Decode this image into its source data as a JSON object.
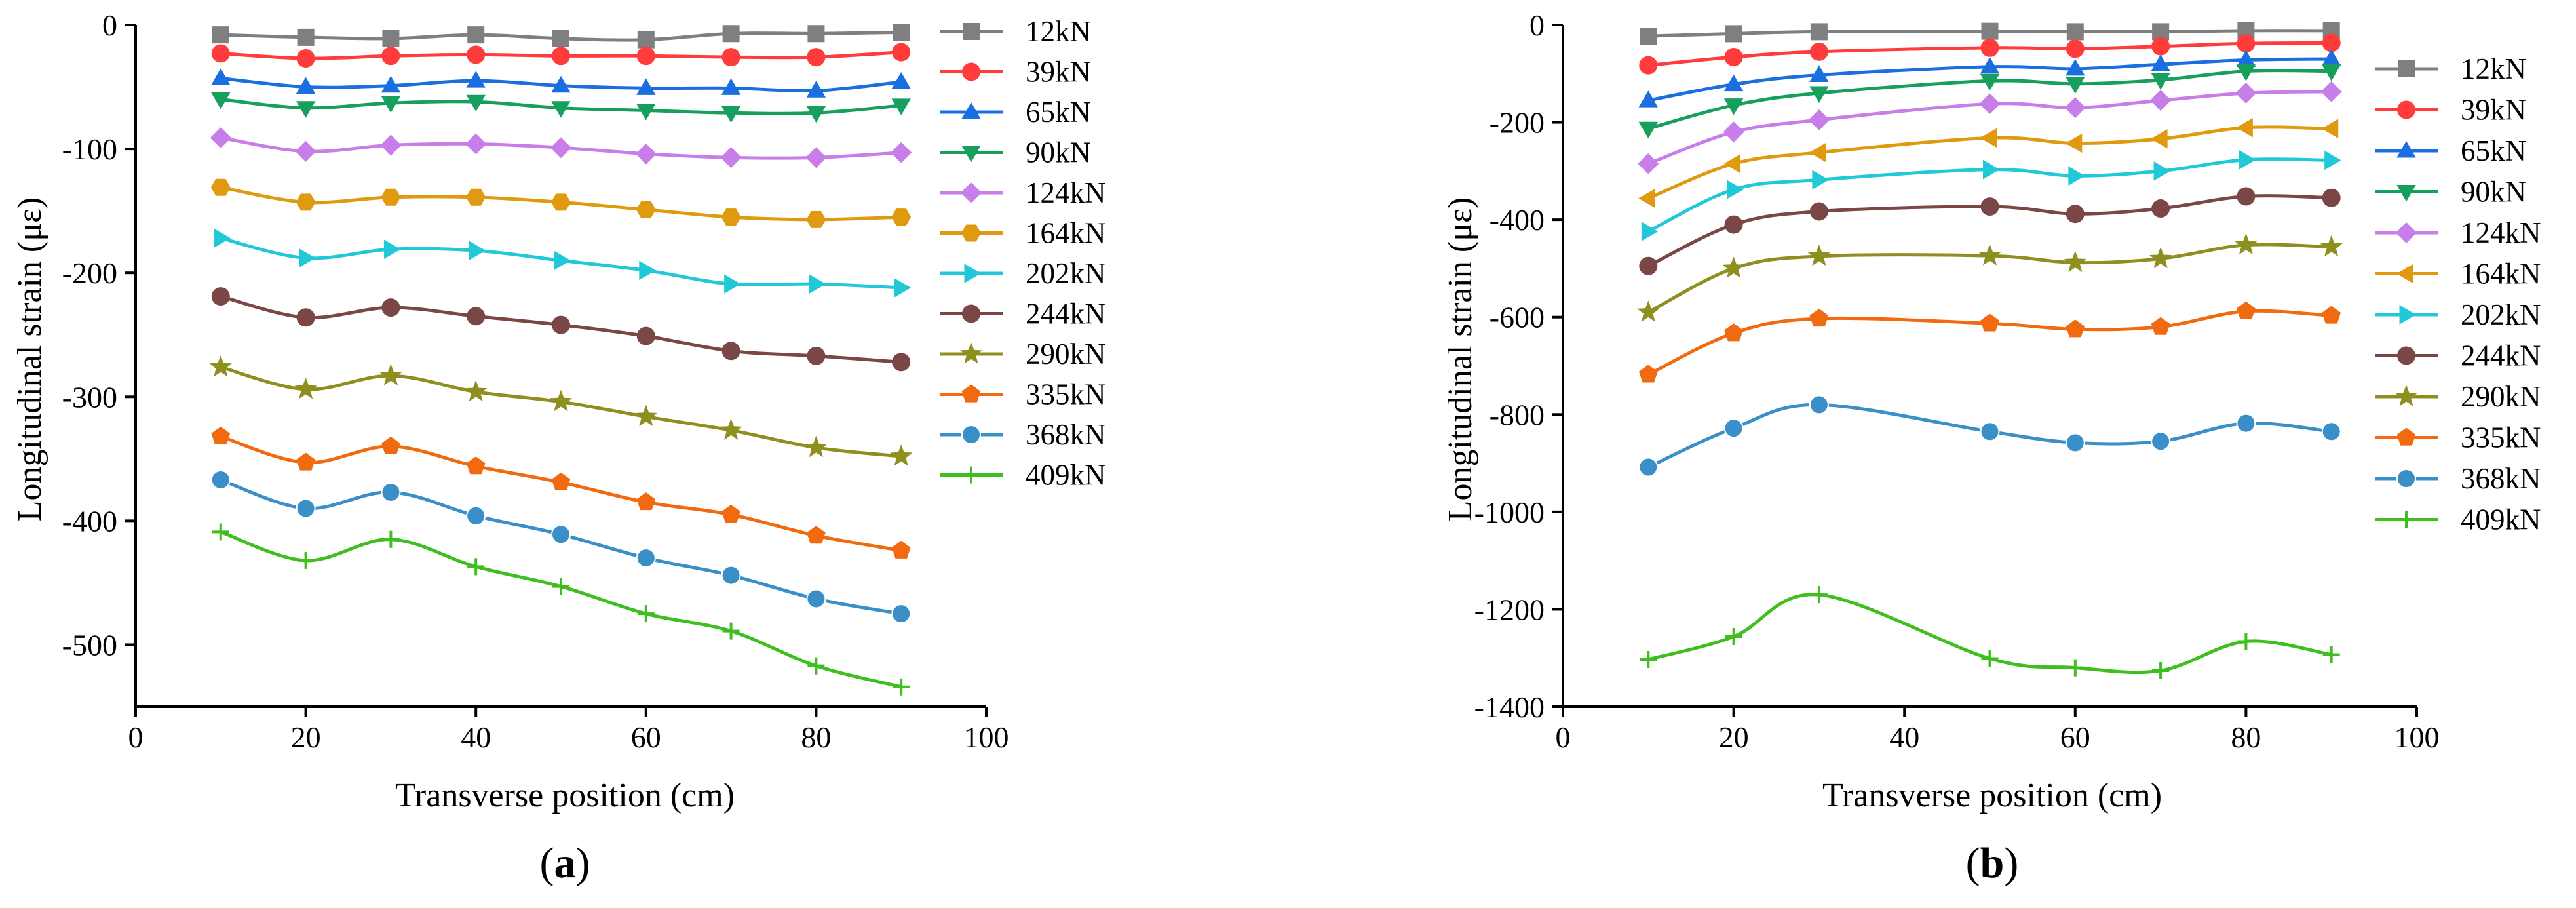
{
  "colors": {
    "12kN": "#7f7f7f",
    "39kN": "#ff3b3b",
    "65kN": "#1a6fe0",
    "90kN": "#17a05d",
    "124kN": "#c77ee8",
    "164kN": "#e09a10",
    "202kN": "#20c8d8",
    "244kN": "#7b4646",
    "290kN": "#8f8f1f",
    "335kN": "#f26a10",
    "368kN": "#3a8fc8",
    "409kN": "#3fbf1f"
  },
  "chart_data": [
    {
      "type": "line",
      "panel_label_open": "(",
      "panel_label": "a",
      "panel_label_close": ")",
      "xlabel": "Transverse position (cm)",
      "ylabel": "Longitudinal strain (με)",
      "xlim": [
        0,
        100
      ],
      "ylim": [
        -550,
        0
      ],
      "xticks": [
        0,
        20,
        40,
        60,
        80,
        100
      ],
      "yticks": [
        0,
        -100,
        -200,
        -300,
        -400,
        -500
      ],
      "x": [
        10,
        20,
        30,
        40,
        50,
        60,
        70,
        80,
        90
      ],
      "series": [
        {
          "name": "12kN",
          "marker": "square",
          "values": [
            -8,
            -10,
            -11,
            -8,
            -11,
            -12,
            -7,
            -7,
            -6
          ]
        },
        {
          "name": "39kN",
          "marker": "circle",
          "values": [
            -23,
            -27,
            -25,
            -24,
            -25,
            -25,
            -26,
            -26,
            -22
          ]
        },
        {
          "name": "65kN",
          "marker": "triangle-up",
          "values": [
            -43,
            -50,
            -49,
            -45,
            -49,
            -51,
            -51,
            -53,
            -46
          ]
        },
        {
          "name": "90kN",
          "marker": "triangle-down",
          "values": [
            -60,
            -67,
            -63,
            -62,
            -67,
            -69,
            -71,
            -71,
            -65
          ]
        },
        {
          "name": "124kN",
          "marker": "diamond",
          "values": [
            -91,
            -102,
            -97,
            -96,
            -99,
            -104,
            -107,
            -107,
            -103
          ]
        },
        {
          "name": "164kN",
          "marker": "hexagon",
          "values": [
            -131,
            -143,
            -139,
            -139,
            -143,
            -149,
            -155,
            -157,
            -155
          ]
        },
        {
          "name": "202kN",
          "marker": "triangle-right",
          "values": [
            -172,
            -188,
            -181,
            -182,
            -190,
            -198,
            -209,
            -209,
            -212
          ]
        },
        {
          "name": "244kN",
          "marker": "circle",
          "values": [
            -219,
            -236,
            -228,
            -235,
            -242,
            -251,
            -263,
            -267,
            -272
          ]
        },
        {
          "name": "290kN",
          "marker": "star",
          "values": [
            -276,
            -294,
            -283,
            -296,
            -304,
            -316,
            -327,
            -341,
            -348
          ]
        },
        {
          "name": "335kN",
          "marker": "pentagon",
          "values": [
            -332,
            -353,
            -340,
            -356,
            -369,
            -385,
            -395,
            -412,
            -424
          ]
        },
        {
          "name": "368kN",
          "marker": "sphere",
          "values": [
            -367,
            -390,
            -377,
            -396,
            -411,
            -430,
            -444,
            -463,
            -475
          ]
        },
        {
          "name": "409kN",
          "marker": "plus",
          "values": [
            -409,
            -432,
            -415,
            -437,
            -453,
            -475,
            -489,
            -517,
            -534
          ]
        }
      ]
    },
    {
      "type": "line",
      "panel_label_open": "(",
      "panel_label": "b",
      "panel_label_close": ")",
      "xlabel": "Transverse position (cm)",
      "ylabel": "Longitudinal strain (με)",
      "xlim": [
        0,
        100
      ],
      "ylim": [
        -1400,
        0
      ],
      "xticks": [
        0,
        20,
        40,
        60,
        80,
        100
      ],
      "yticks": [
        0,
        -200,
        -400,
        -600,
        -800,
        -1000,
        -1200,
        -1400
      ],
      "x": [
        10,
        20,
        30,
        50,
        60,
        70,
        80,
        90
      ],
      "series": [
        {
          "name": "12kN",
          "marker": "square",
          "values": [
            -23,
            -18,
            -14,
            -13,
            -14,
            -14,
            -12,
            -12
          ]
        },
        {
          "name": "39kN",
          "marker": "circle",
          "values": [
            -83,
            -66,
            -55,
            -47,
            -49,
            -44,
            -38,
            -37
          ]
        },
        {
          "name": "65kN",
          "marker": "triangle-up",
          "values": [
            -155,
            -122,
            -103,
            -86,
            -90,
            -81,
            -72,
            -70
          ]
        },
        {
          "name": "90kN",
          "marker": "triangle-down",
          "values": [
            -213,
            -165,
            -140,
            -115,
            -121,
            -113,
            -95,
            -95
          ]
        },
        {
          "name": "124kN",
          "marker": "diamond",
          "values": [
            -285,
            -220,
            -195,
            -162,
            -170,
            -155,
            -140,
            -137
          ]
        },
        {
          "name": "164kN",
          "marker": "triangle-left",
          "values": [
            -356,
            -285,
            -262,
            -232,
            -243,
            -234,
            -211,
            -213
          ]
        },
        {
          "name": "202kN",
          "marker": "triangle-right",
          "values": [
            -424,
            -338,
            -318,
            -297,
            -310,
            -300,
            -277,
            -278
          ]
        },
        {
          "name": "244kN",
          "marker": "circle",
          "values": [
            -495,
            -410,
            -383,
            -373,
            -388,
            -377,
            -352,
            -355
          ]
        },
        {
          "name": "290kN",
          "marker": "star",
          "values": [
            -590,
            -500,
            -475,
            -474,
            -488,
            -480,
            -452,
            -456
          ]
        },
        {
          "name": "335kN",
          "marker": "pentagon",
          "values": [
            -718,
            -633,
            -603,
            -613,
            -625,
            -620,
            -588,
            -597
          ]
        },
        {
          "name": "368kN",
          "marker": "sphere",
          "values": [
            -908,
            -828,
            -780,
            -835,
            -858,
            -855,
            -818,
            -835
          ]
        },
        {
          "name": "409kN",
          "marker": "plus",
          "values": [
            -1303,
            -1256,
            -1170,
            -1301,
            -1320,
            -1326,
            -1266,
            -1293
          ]
        }
      ]
    }
  ]
}
